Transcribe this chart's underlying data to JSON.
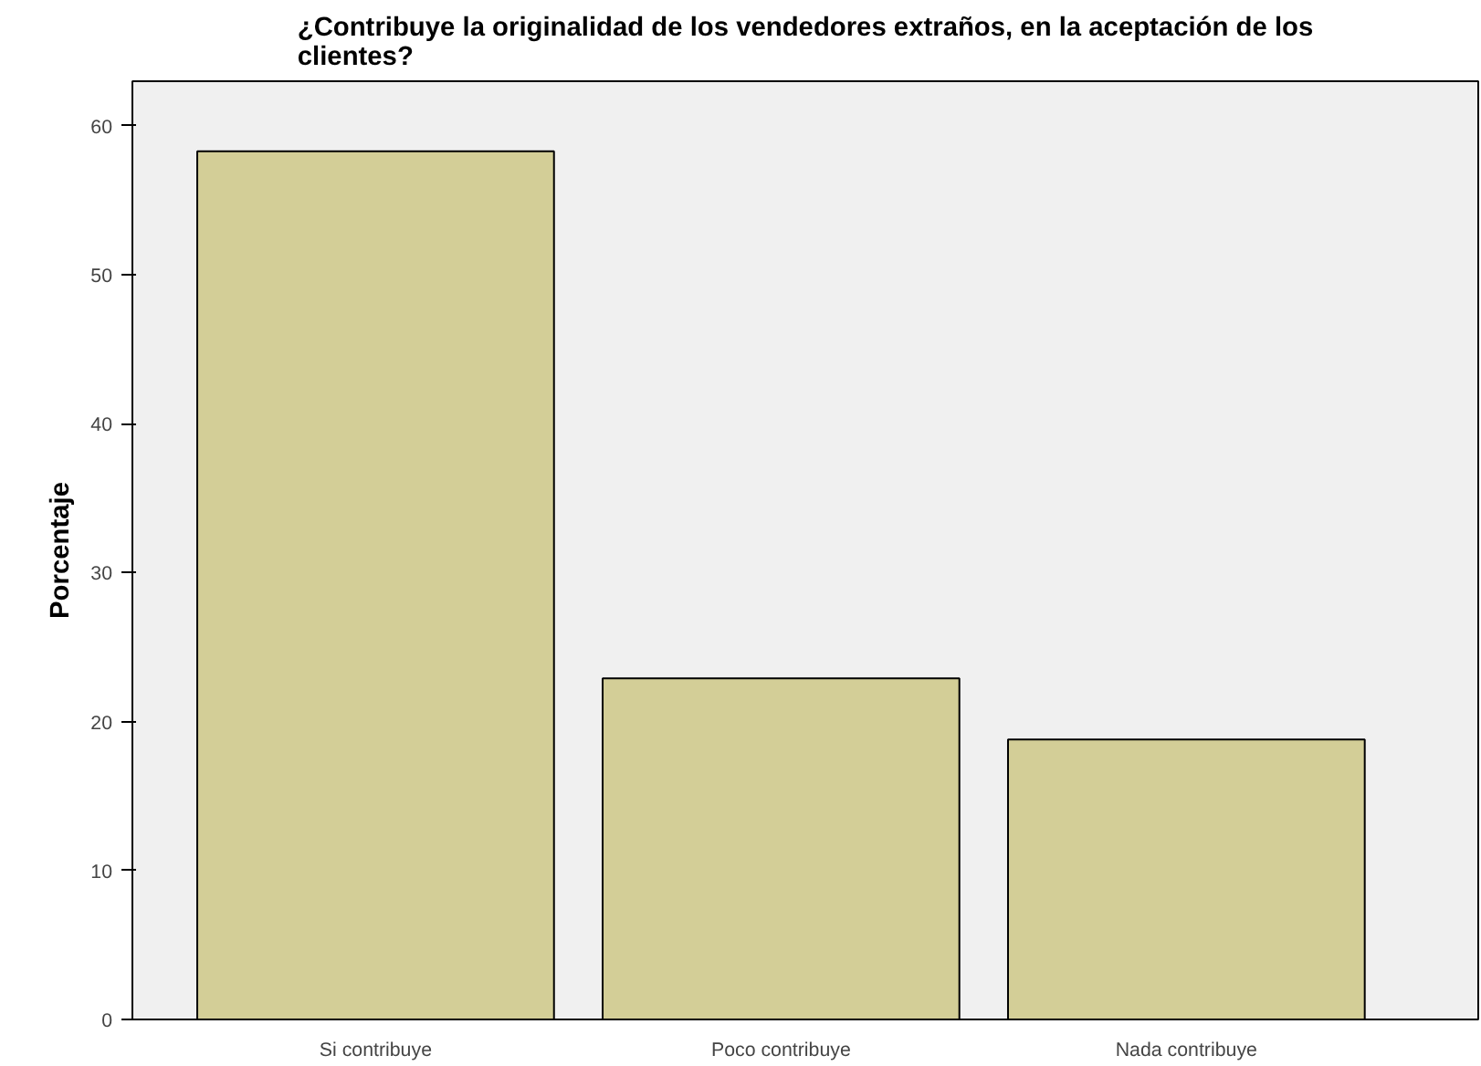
{
  "chart_data": {
    "type": "bar",
    "title": "¿Contribuye la originalidad de los vendedores extraños, en la aceptación de los clientes?",
    "ylabel": "Porcentaje",
    "categories": [
      "Si contribuye",
      "Poco contribuye",
      "Nada contribuye"
    ],
    "values": [
      58.3,
      22.9,
      18.8
    ],
    "color": "#d3ce97",
    "ylim": [
      0,
      63
    ],
    "yticks": [
      0,
      10,
      20,
      30,
      40,
      50,
      60
    ],
    "grid": false
  }
}
